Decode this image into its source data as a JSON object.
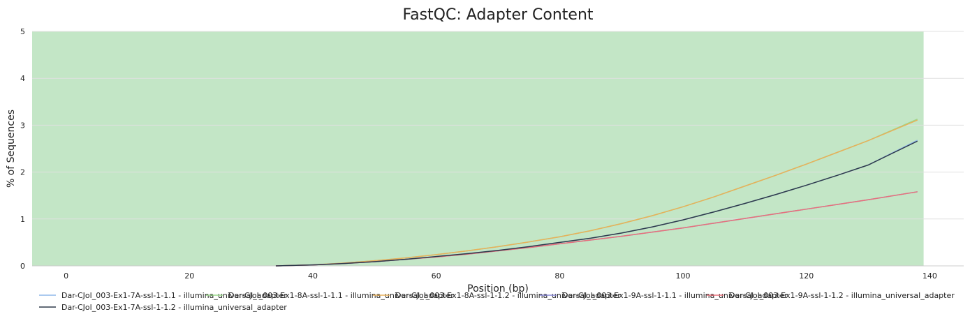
{
  "chart_data": {
    "type": "line",
    "title": "FastQC: Adapter Content",
    "xlabel": "Position (bp)",
    "ylabel": "% of Sequences",
    "xlim": [
      -5.5,
      145.5
    ],
    "ylim": [
      0,
      5
    ],
    "x_ticks": [
      0,
      20,
      40,
      60,
      80,
      100,
      120,
      140
    ],
    "y_ticks": [
      0,
      1,
      2,
      3,
      4,
      5
    ],
    "grid": true,
    "legend_position": "bottom",
    "background_band": {
      "from": -5.5,
      "to": 139,
      "color": "#c3e6c6"
    },
    "x": [
      34,
      40,
      45,
      50,
      55,
      60,
      65,
      70,
      75,
      80,
      85,
      90,
      95,
      100,
      105,
      110,
      115,
      120,
      125,
      130,
      138
    ],
    "series": [
      {
        "name": "Dar-CJol_003-Ex1-7A-ssl-1-1.1 - illumina_universal_adapter",
        "color": "#8fb8ea",
        "values": [
          0,
          0.02,
          0.05,
          0.09,
          0.14,
          0.2,
          0.26,
          0.33,
          0.41,
          0.5,
          0.59,
          0.7,
          0.83,
          0.98,
          1.15,
          1.33,
          1.52,
          1.72,
          1.93,
          2.15,
          2.68
        ]
      },
      {
        "name": "Dar-CJol_003-Ex1-8A-ssl-1-1.1 - illumina_universal_adapter",
        "color": "#9ad88a",
        "values": [
          0,
          0.02,
          0.06,
          0.11,
          0.17,
          0.24,
          0.32,
          0.41,
          0.51,
          0.62,
          0.75,
          0.9,
          1.07,
          1.26,
          1.47,
          1.7,
          1.93,
          2.17,
          2.42,
          2.67,
          3.13
        ]
      },
      {
        "name": "Dar-CJol_003-Ex1-8A-ssl-1-1.2 - illumina_universal_adapter",
        "color": "#e8b05a",
        "values": [
          0,
          0.02,
          0.06,
          0.11,
          0.17,
          0.24,
          0.32,
          0.41,
          0.51,
          0.62,
          0.75,
          0.9,
          1.07,
          1.26,
          1.47,
          1.7,
          1.93,
          2.17,
          2.42,
          2.67,
          3.11
        ]
      },
      {
        "name": "Dar-CJol_003-Ex1-9A-ssl-1-1.1 - illumina_universal_adapter",
        "color": "#8a8ad8",
        "values": [
          0,
          0.02,
          0.05,
          0.09,
          0.14,
          0.19,
          0.25,
          0.32,
          0.39,
          0.47,
          0.55,
          0.63,
          0.72,
          0.81,
          0.91,
          1.01,
          1.11,
          1.21,
          1.31,
          1.41,
          1.58
        ]
      },
      {
        "name": "Dar-CJol_003-Ex1-9A-ssl-1-1.2 - illumina_universal_adapter",
        "color": "#e8707a",
        "values": [
          0,
          0.02,
          0.05,
          0.09,
          0.14,
          0.19,
          0.25,
          0.32,
          0.39,
          0.47,
          0.55,
          0.63,
          0.72,
          0.81,
          0.91,
          1.01,
          1.11,
          1.21,
          1.31,
          1.41,
          1.58
        ]
      },
      {
        "name": "Dar-CJol_003-Ex1-7A-ssl-1-1.2 - illumina_universal_adapter",
        "color": "#2e3a4a",
        "values": [
          0,
          0.02,
          0.05,
          0.09,
          0.14,
          0.2,
          0.26,
          0.33,
          0.41,
          0.5,
          0.59,
          0.7,
          0.83,
          0.98,
          1.15,
          1.33,
          1.52,
          1.72,
          1.93,
          2.15,
          2.66
        ]
      }
    ]
  }
}
